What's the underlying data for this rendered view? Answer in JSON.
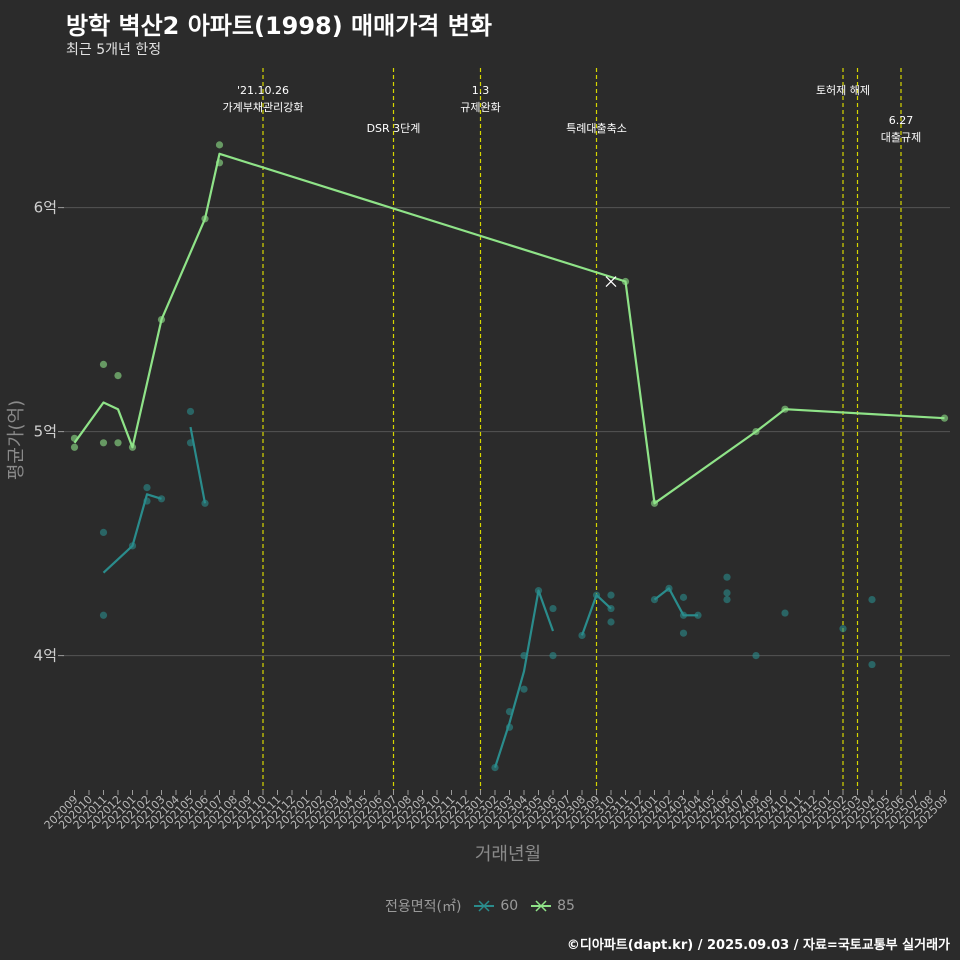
{
  "title": "방학 벽산2 아파트(1998) 매매가격 변화",
  "subtitle": "최근 5개년 한정",
  "caption": "©디아파트(dapt.kr) / 2025.09.03 / 자료=국토교통부 실거래가",
  "colors": {
    "background": "#2b2b2b",
    "series60": "#2a8c8c",
    "series85": "#8fe388",
    "vline": "#d6d600",
    "grid": "#555555"
  },
  "chart_data": {
    "type": "line",
    "xlabel": "거래년월",
    "ylabel": "평균가(억)",
    "ylim": [
      3.4,
      6.65
    ],
    "yticks": [
      {
        "v": 4,
        "label": "4억"
      },
      {
        "v": 5,
        "label": "5억"
      },
      {
        "v": 6,
        "label": "6억"
      }
    ],
    "x_categories": [
      "202009",
      "202010",
      "202011",
      "202012",
      "202101",
      "202102",
      "202103",
      "202104",
      "202105",
      "202106",
      "202107",
      "202108",
      "202109",
      "202110",
      "202111",
      "202112",
      "202201",
      "202202",
      "202203",
      "202204",
      "202205",
      "202206",
      "202207",
      "202208",
      "202209",
      "202210",
      "202211",
      "202212",
      "202301",
      "202302",
      "202303",
      "202304",
      "202305",
      "202306",
      "202307",
      "202308",
      "202309",
      "202310",
      "202311",
      "202312",
      "202401",
      "202402",
      "202403",
      "202404",
      "202405",
      "202406",
      "202407",
      "202408",
      "202409",
      "202410",
      "202411",
      "202412",
      "202501",
      "202502",
      "202503",
      "202504",
      "202505",
      "202506",
      "202507",
      "202508",
      "202509"
    ],
    "legend_title": "전용면적(㎡)",
    "series": [
      {
        "name": "60",
        "color": "#2a8c8c",
        "line": [
          [
            [
              "202011",
              4.37
            ],
            [
              "202101",
              4.49
            ],
            [
              "202102",
              4.72
            ],
            [
              "202103",
              4.7
            ]
          ],
          [
            [
              "202105",
              5.02
            ],
            [
              "202106",
              4.68
            ]
          ],
          [
            [
              "202302",
              3.5
            ],
            [
              "202303",
              3.7
            ],
            [
              "202304",
              3.93
            ],
            [
              "202305",
              4.29
            ],
            [
              "202306",
              4.11
            ]
          ],
          [
            [
              "202308",
              4.09
            ],
            [
              "202309",
              4.27
            ],
            [
              "202310",
              4.21
            ]
          ],
          [
            [
              "202401",
              4.25
            ],
            [
              "202402",
              4.3
            ],
            [
              "202403",
              4.18
            ],
            [
              "202404",
              4.18
            ]
          ]
        ],
        "points": [
          [
            "202011",
            4.55
          ],
          [
            "202011",
            4.18
          ],
          [
            "202101",
            4.49
          ],
          [
            "202102",
            4.75
          ],
          [
            "202102",
            4.69
          ],
          [
            "202103",
            4.7
          ],
          [
            "202105",
            5.09
          ],
          [
            "202105",
            4.95
          ],
          [
            "202106",
            4.68
          ],
          [
            "202302",
            3.5
          ],
          [
            "202303",
            3.75
          ],
          [
            "202303",
            3.68
          ],
          [
            "202304",
            4.0
          ],
          [
            "202304",
            3.85
          ],
          [
            "202305",
            4.29
          ],
          [
            "202306",
            4.21
          ],
          [
            "202306",
            4.0
          ],
          [
            "202308",
            4.09
          ],
          [
            "202309",
            4.27
          ],
          [
            "202310",
            4.27
          ],
          [
            "202310",
            4.21
          ],
          [
            "202310",
            4.15
          ],
          [
            "202401",
            4.25
          ],
          [
            "202402",
            4.3
          ],
          [
            "202403",
            4.26
          ],
          [
            "202403",
            4.18
          ],
          [
            "202403",
            4.1
          ],
          [
            "202404",
            4.18
          ],
          [
            "202406",
            4.35
          ],
          [
            "202406",
            4.28
          ],
          [
            "202406",
            4.25
          ],
          [
            "202408",
            4.0
          ],
          [
            "202410",
            4.19
          ],
          [
            "202502",
            4.12
          ],
          [
            "202504",
            4.25
          ],
          [
            "202504",
            3.96
          ]
        ]
      },
      {
        "name": "85",
        "color": "#8fe388",
        "line": [
          [
            [
              "202009",
              4.95
            ],
            [
              "202011",
              5.13
            ],
            [
              "202012",
              5.1
            ],
            [
              "202101",
              4.93
            ],
            [
              "202103",
              5.5
            ],
            [
              "202106",
              5.95
            ],
            [
              "202107",
              6.24
            ],
            [
              "202311",
              5.67
            ],
            [
              "202401",
              4.68
            ],
            [
              "202408",
              5.0
            ],
            [
              "202410",
              5.1
            ],
            [
              "202509",
              5.06
            ]
          ]
        ],
        "points": [
          [
            "202009",
            4.97
          ],
          [
            "202009",
            4.93
          ],
          [
            "202011",
            5.3
          ],
          [
            "202011",
            4.95
          ],
          [
            "202012",
            5.25
          ],
          [
            "202012",
            4.95
          ],
          [
            "202101",
            4.93
          ],
          [
            "202103",
            5.5
          ],
          [
            "202106",
            5.95
          ],
          [
            "202107",
            6.28
          ],
          [
            "202107",
            6.2
          ],
          [
            "202311",
            5.67
          ],
          [
            "202401",
            4.68
          ],
          [
            "202408",
            5.0
          ],
          [
            "202410",
            5.1
          ],
          [
            "202509",
            5.06
          ]
        ],
        "cross_marker": [
          "202310",
          5.67
        ]
      }
    ],
    "annotations": [
      {
        "x": "202110",
        "lines": [
          "'21.10.26",
          "가계부채관리강화"
        ],
        "level": 0
      },
      {
        "x": "202207",
        "lines": [
          "DSR 3단계"
        ],
        "level": 1
      },
      {
        "x": "202301",
        "lines": [
          "1.3",
          "규제완화"
        ],
        "level": 0
      },
      {
        "x": "202309",
        "lines": [
          "특례대출축소"
        ],
        "level": 1
      },
      {
        "x": "202502",
        "lines": [
          "토허제 해제"
        ],
        "level": 0
      },
      {
        "x": "202503",
        "lines": [],
        "level": 0
      },
      {
        "x": "202506",
        "lines": [
          "6.27",
          "대출규제"
        ],
        "level": 2
      }
    ]
  }
}
